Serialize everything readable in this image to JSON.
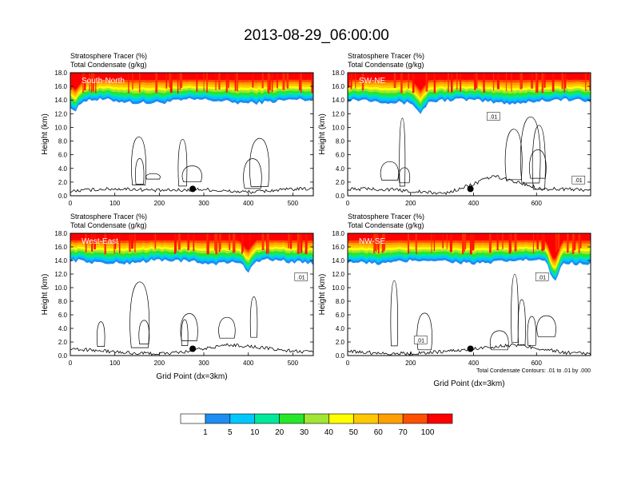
{
  "title": "2013-08-29_06:00:00",
  "chart_data": [
    {
      "type": "heatmap",
      "panel_label": "South-North",
      "subtitle_left": "Stratosphere Tracer   (%)",
      "subtitle_left2": "Total Condensate   (g/kg)",
      "ylabel": "Height (km)",
      "xlabel": "",
      "xlim": [
        0,
        546
      ],
      "ylim": [
        0,
        18
      ],
      "xticks": [
        0,
        100,
        200,
        300,
        400,
        500
      ],
      "yticks": [
        "0.0",
        "2.0",
        "4.0",
        "6.0",
        "8.0",
        "10.0",
        "12.0",
        "14.0",
        "16.0",
        "18.0"
      ],
      "marker_x": 275,
      "marker_y": 1.0,
      "tracer_base_km": 13.8,
      "contour_labels": []
    },
    {
      "type": "heatmap",
      "panel_label": "SW-NE",
      "subtitle_left": "Stratosphere Tracer   (%)",
      "subtitle_left2": "Total Condensate   (g/kg)",
      "ylabel": "Height (km)",
      "xlabel": "",
      "xlim": [
        0,
        772
      ],
      "ylim": [
        0,
        18
      ],
      "xticks": [
        0,
        200,
        400,
        600
      ],
      "yticks": [
        "0.0",
        "2.0",
        "4.0",
        "6.0",
        "8.0",
        "10.0",
        "12.0",
        "14.0",
        "16.0",
        "18.0"
      ],
      "marker_x": 390,
      "marker_y": 1.0,
      "tracer_base_km": 13.8,
      "contour_labels": [
        ".01",
        ".01"
      ]
    },
    {
      "type": "heatmap",
      "panel_label": "West-East",
      "subtitle_left": "Stratosphere Tracer   (%)",
      "subtitle_left2": "Total Condensate   (g/kg)",
      "ylabel": "Height (km)",
      "xlabel": "Grid Point (dx=3km)",
      "xlim": [
        0,
        546
      ],
      "ylim": [
        0,
        18
      ],
      "xticks": [
        0,
        100,
        200,
        300,
        400,
        500
      ],
      "yticks": [
        "0.0",
        "2.0",
        "4.0",
        "6.0",
        "8.0",
        "10.0",
        "12.0",
        "14.0",
        "16.0",
        "18.0"
      ],
      "marker_x": 275,
      "marker_y": 1.0,
      "tracer_base_km": 13.8,
      "contour_labels": [
        ".01"
      ]
    },
    {
      "type": "heatmap",
      "panel_label": "NW-SE",
      "subtitle_left": "Stratosphere Tracer   (%)",
      "subtitle_left2": "Total Condensate   (g/kg)",
      "ylabel": "Height (km)",
      "xlabel": "Grid Point (dx=3km)",
      "xlim": [
        0,
        772
      ],
      "ylim": [
        0,
        18
      ],
      "xticks": [
        0,
        200,
        400,
        600
      ],
      "yticks": [
        "0.0",
        "2.0",
        "4.0",
        "6.0",
        "8.0",
        "10.0",
        "12.0",
        "14.0",
        "16.0",
        "18.0"
      ],
      "marker_x": 390,
      "marker_y": 1.0,
      "tracer_base_km": 13.8,
      "contour_labels": [
        ".01",
        ".01"
      ],
      "footnote": "Total Condensate Contours: .01 to .01 by .000"
    }
  ],
  "colorbar": {
    "levels": [
      "1",
      "5",
      "10",
      "20",
      "30",
      "40",
      "50",
      "60",
      "70",
      "100"
    ],
    "colors": [
      "#ffffff",
      "#1e8cf0",
      "#00c8ff",
      "#00e89c",
      "#28e628",
      "#a0e632",
      "#ffff00",
      "#ffc800",
      "#ffa000",
      "#ff5000",
      "#ff0000"
    ]
  }
}
